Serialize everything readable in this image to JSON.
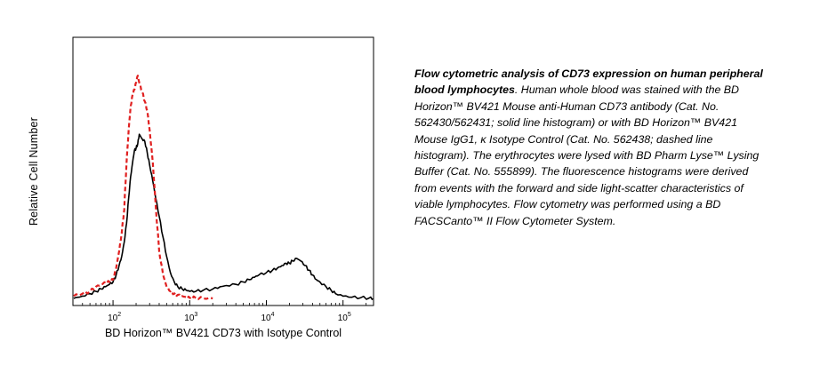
{
  "chart_data": {
    "type": "line",
    "xlabel": "BD Horizon™ BV421 CD73 with Isotype Control",
    "ylabel": "Relative Cell Number",
    "x_scale": "log",
    "xlim": [
      30,
      250000
    ],
    "ylim": [
      0,
      100
    ],
    "x_ticks": [
      {
        "base": "10",
        "exp": "2",
        "value": 100
      },
      {
        "base": "10",
        "exp": "3",
        "value": 1000
      },
      {
        "base": "10",
        "exp": "4",
        "value": 10000
      },
      {
        "base": "10",
        "exp": "5",
        "value": 100000
      }
    ],
    "grid": false,
    "series": [
      {
        "style": "solid",
        "color": "#000000",
        "x": [
          30,
          40,
          50,
          60,
          70,
          80,
          90,
          100,
          110,
          120,
          130,
          140,
          150,
          160,
          170,
          180,
          190,
          200,
          210,
          220,
          240,
          260,
          280,
          300,
          330,
          360,
          400,
          450,
          500,
          560,
          630,
          700,
          800,
          900,
          1000,
          1200,
          1500,
          2000,
          2500,
          3000,
          4000,
          5000,
          6000,
          7000,
          8000,
          10000,
          12000,
          14000,
          16000,
          18000,
          20000,
          22000,
          25000,
          28000,
          32000,
          36000,
          40000,
          45000,
          50000,
          60000,
          70000,
          80000,
          100000,
          130000,
          170000,
          220000,
          250000
        ],
        "y": [
          0,
          1,
          2,
          3,
          4,
          5,
          6,
          7,
          10,
          14,
          18,
          24,
          32,
          43,
          52,
          58,
          63,
          64,
          66,
          70,
          68,
          67,
          62,
          57,
          50,
          43,
          35,
          26,
          18,
          11,
          7,
          5,
          4,
          3.5,
          3,
          3,
          3.5,
          4,
          5,
          5.5,
          6,
          7,
          8,
          9,
          10,
          11,
          12,
          13,
          14,
          15,
          15,
          16,
          17,
          16,
          14,
          12,
          10,
          8,
          7,
          5,
          3.5,
          2,
          1,
          0.5,
          0.3,
          0.2,
          0
        ]
      },
      {
        "style": "dashed",
        "color": "#e02020",
        "x": [
          30,
          40,
          50,
          60,
          70,
          80,
          90,
          100,
          110,
          120,
          130,
          140,
          150,
          160,
          170,
          180,
          190,
          200,
          210,
          220,
          240,
          260,
          280,
          300,
          330,
          360,
          400,
          450,
          500,
          560,
          630,
          700,
          800,
          900,
          1000,
          1200,
          1500,
          2000
        ],
        "y": [
          1,
          2,
          3,
          5,
          6,
          7,
          7,
          8,
          13,
          20,
          28,
          38,
          58,
          72,
          82,
          87,
          89,
          92,
          95,
          92,
          88,
          84,
          80,
          72,
          58,
          40,
          20,
          10,
          5,
          3,
          2,
          1.5,
          1,
          0.5,
          0.3,
          0.2,
          0,
          0
        ]
      }
    ]
  },
  "caption": {
    "title": "Flow cytometric analysis of CD73 expression on human peripheral blood lymphocytes",
    "body": ". Human whole blood was stained with the BD Horizon™ BV421 Mouse anti-Human CD73 antibody (Cat. No. 562430/562431; solid line histogram) or with BD Horizon™ BV421 Mouse IgG1, κ Isotype Control (Cat. No. 562438; dashed line histogram). The erythrocytes were lysed with BD Pharm Lyse™ Lysing Buffer (Cat. No. 555899). The fluorescence histograms were derived from events with the forward and side light-scatter characteristics of viable lymphocytes. Flow cytometry was performed using a BD FACSCanto™ II Flow Cytometer System."
  }
}
